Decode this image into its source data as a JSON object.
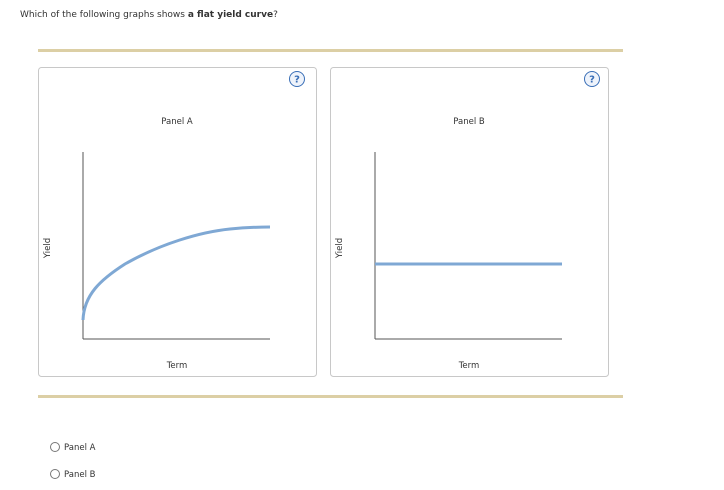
{
  "question": {
    "text": "Which of the following graphs shows ",
    "emphasis": "a flat yield curve",
    "end": "?"
  },
  "panels": [
    {
      "title": "Panel A",
      "help": "?",
      "y_label": "Yield",
      "x_label": "Term"
    },
    {
      "title": "Panel B",
      "help": "?",
      "y_label": "Yield",
      "x_label": "Term"
    }
  ],
  "options": [
    "Panel A",
    "Panel B"
  ]
}
